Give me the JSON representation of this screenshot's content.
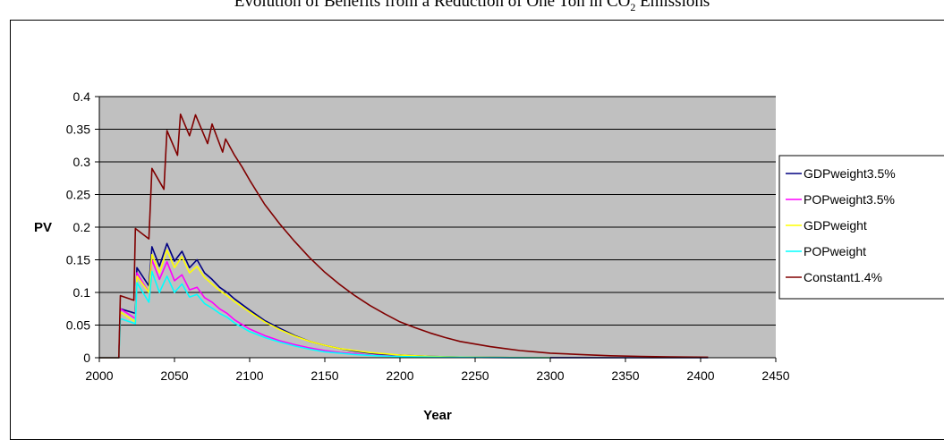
{
  "chart_data": {
    "type": "line",
    "title": "Evolution of Benefits from a Reduction of One Ton in CO",
    "title_subscript": "2",
    "title_suffix": " Emissions",
    "xlabel": "Year",
    "ylabel": "PV",
    "xlim": [
      2000,
      2450
    ],
    "ylim": [
      0,
      0.4
    ],
    "x_ticks": [
      "2000",
      "2050",
      "2100",
      "2150",
      "2200",
      "2250",
      "2300",
      "2350",
      "2400",
      "2450"
    ],
    "y_ticks": [
      "0",
      "0.05",
      "0.1",
      "0.15",
      "0.2",
      "0.25",
      "0.3",
      "0.35",
      "0.4"
    ],
    "grid": true,
    "plot_background": "#c0c0c0",
    "legend_position": "right",
    "series": [
      {
        "name": "GDPweight3.5%",
        "color": "#000080",
        "points": [
          [
            2000,
            0
          ],
          [
            2013,
            0
          ],
          [
            2014,
            0.075
          ],
          [
            2024,
            0.068
          ],
          [
            2025,
            0.138
          ],
          [
            2033,
            0.11
          ],
          [
            2035,
            0.17
          ],
          [
            2040,
            0.14
          ],
          [
            2045,
            0.175
          ],
          [
            2050,
            0.148
          ],
          [
            2055,
            0.163
          ],
          [
            2060,
            0.138
          ],
          [
            2065,
            0.15
          ],
          [
            2070,
            0.13
          ],
          [
            2075,
            0.12
          ],
          [
            2080,
            0.108
          ],
          [
            2085,
            0.1
          ],
          [
            2090,
            0.09
          ],
          [
            2100,
            0.073
          ],
          [
            2110,
            0.057
          ],
          [
            2120,
            0.045
          ],
          [
            2130,
            0.034
          ],
          [
            2140,
            0.025
          ],
          [
            2150,
            0.019
          ],
          [
            2160,
            0.014
          ],
          [
            2170,
            0.01
          ],
          [
            2180,
            0.007
          ],
          [
            2190,
            0.005
          ],
          [
            2200,
            0.004
          ],
          [
            2210,
            0.003
          ],
          [
            2220,
            0.002
          ],
          [
            2230,
            0.0015
          ],
          [
            2240,
            0.001
          ],
          [
            2260,
            0.0005
          ],
          [
            2280,
            0.0002
          ],
          [
            2300,
            0.0001
          ],
          [
            2350,
            3e-05
          ],
          [
            2405,
            1e-05
          ]
        ]
      },
      {
        "name": "POPweight3.5%",
        "color": "#ff00ff",
        "points": [
          [
            2000,
            0
          ],
          [
            2013,
            0
          ],
          [
            2014,
            0.075
          ],
          [
            2024,
            0.06
          ],
          [
            2025,
            0.13
          ],
          [
            2033,
            0.1
          ],
          [
            2035,
            0.15
          ],
          [
            2040,
            0.12
          ],
          [
            2045,
            0.147
          ],
          [
            2050,
            0.118
          ],
          [
            2055,
            0.127
          ],
          [
            2060,
            0.104
          ],
          [
            2065,
            0.108
          ],
          [
            2070,
            0.092
          ],
          [
            2075,
            0.085
          ],
          [
            2080,
            0.075
          ],
          [
            2085,
            0.068
          ],
          [
            2090,
            0.058
          ],
          [
            2100,
            0.044
          ],
          [
            2110,
            0.034
          ],
          [
            2120,
            0.026
          ],
          [
            2130,
            0.02
          ],
          [
            2140,
            0.015
          ],
          [
            2150,
            0.011
          ],
          [
            2160,
            0.008
          ],
          [
            2170,
            0.006
          ],
          [
            2180,
            0.004
          ],
          [
            2190,
            0.003
          ],
          [
            2200,
            0.002
          ],
          [
            2220,
            0.001
          ],
          [
            2240,
            0.0005
          ],
          [
            2280,
            0.0001
          ],
          [
            2300,
            5e-05
          ]
        ]
      },
      {
        "name": "GDPweight",
        "color": "#ffff00",
        "points": [
          [
            2000,
            0
          ],
          [
            2013,
            0
          ],
          [
            2014,
            0.07
          ],
          [
            2024,
            0.055
          ],
          [
            2025,
            0.125
          ],
          [
            2033,
            0.1
          ],
          [
            2035,
            0.158
          ],
          [
            2040,
            0.13
          ],
          [
            2045,
            0.165
          ],
          [
            2050,
            0.138
          ],
          [
            2055,
            0.155
          ],
          [
            2060,
            0.13
          ],
          [
            2065,
            0.14
          ],
          [
            2070,
            0.123
          ],
          [
            2075,
            0.113
          ],
          [
            2080,
            0.103
          ],
          [
            2085,
            0.095
          ],
          [
            2090,
            0.086
          ],
          [
            2100,
            0.07
          ],
          [
            2110,
            0.055
          ],
          [
            2120,
            0.043
          ],
          [
            2130,
            0.033
          ],
          [
            2140,
            0.025
          ],
          [
            2150,
            0.019
          ],
          [
            2160,
            0.014
          ],
          [
            2170,
            0.011
          ],
          [
            2180,
            0.008
          ],
          [
            2190,
            0.006
          ],
          [
            2200,
            0.004
          ],
          [
            2220,
            0.002
          ],
          [
            2240,
            0.001
          ],
          [
            2280,
            0.0003
          ],
          [
            2300,
            0.0001
          ]
        ]
      },
      {
        "name": "POPweight",
        "color": "#00ffff",
        "points": [
          [
            2000,
            0
          ],
          [
            2013,
            0
          ],
          [
            2014,
            0.06
          ],
          [
            2024,
            0.052
          ],
          [
            2025,
            0.115
          ],
          [
            2033,
            0.085
          ],
          [
            2035,
            0.132
          ],
          [
            2040,
            0.1
          ],
          [
            2045,
            0.125
          ],
          [
            2050,
            0.1
          ],
          [
            2055,
            0.113
          ],
          [
            2060,
            0.093
          ],
          [
            2065,
            0.097
          ],
          [
            2070,
            0.083
          ],
          [
            2075,
            0.076
          ],
          [
            2080,
            0.068
          ],
          [
            2085,
            0.062
          ],
          [
            2090,
            0.053
          ],
          [
            2100,
            0.04
          ],
          [
            2110,
            0.031
          ],
          [
            2120,
            0.024
          ],
          [
            2130,
            0.018
          ],
          [
            2140,
            0.013
          ],
          [
            2150,
            0.009
          ],
          [
            2160,
            0.007
          ],
          [
            2170,
            0.005
          ],
          [
            2180,
            0.0035
          ],
          [
            2190,
            0.0025
          ],
          [
            2200,
            0.0018
          ],
          [
            2220,
            0.001
          ],
          [
            2240,
            0.0005
          ],
          [
            2280,
            0.0001
          ],
          [
            2300,
            5e-05
          ]
        ]
      },
      {
        "name": "Constant1.4%",
        "color": "#800000",
        "points": [
          [
            2000,
            0
          ],
          [
            2013,
            0
          ],
          [
            2014,
            0.095
          ],
          [
            2023,
            0.088
          ],
          [
            2024,
            0.198
          ],
          [
            2033,
            0.182
          ],
          [
            2035,
            0.29
          ],
          [
            2043,
            0.258
          ],
          [
            2045,
            0.348
          ],
          [
            2052,
            0.31
          ],
          [
            2054,
            0.373
          ],
          [
            2060,
            0.34
          ],
          [
            2064,
            0.372
          ],
          [
            2072,
            0.328
          ],
          [
            2075,
            0.358
          ],
          [
            2082,
            0.315
          ],
          [
            2084,
            0.335
          ],
          [
            2090,
            0.31
          ],
          [
            2095,
            0.292
          ],
          [
            2100,
            0.272
          ],
          [
            2110,
            0.235
          ],
          [
            2120,
            0.205
          ],
          [
            2130,
            0.178
          ],
          [
            2140,
            0.153
          ],
          [
            2150,
            0.131
          ],
          [
            2160,
            0.112
          ],
          [
            2170,
            0.095
          ],
          [
            2180,
            0.08
          ],
          [
            2190,
            0.067
          ],
          [
            2200,
            0.055
          ],
          [
            2210,
            0.046
          ],
          [
            2220,
            0.038
          ],
          [
            2230,
            0.031
          ],
          [
            2240,
            0.025
          ],
          [
            2250,
            0.021
          ],
          [
            2260,
            0.017
          ],
          [
            2270,
            0.014
          ],
          [
            2280,
            0.011
          ],
          [
            2290,
            0.009
          ],
          [
            2300,
            0.007
          ],
          [
            2320,
            0.005
          ],
          [
            2340,
            0.003
          ],
          [
            2360,
            0.002
          ],
          [
            2380,
            0.0012
          ],
          [
            2405,
            0.0008
          ]
        ]
      }
    ]
  }
}
